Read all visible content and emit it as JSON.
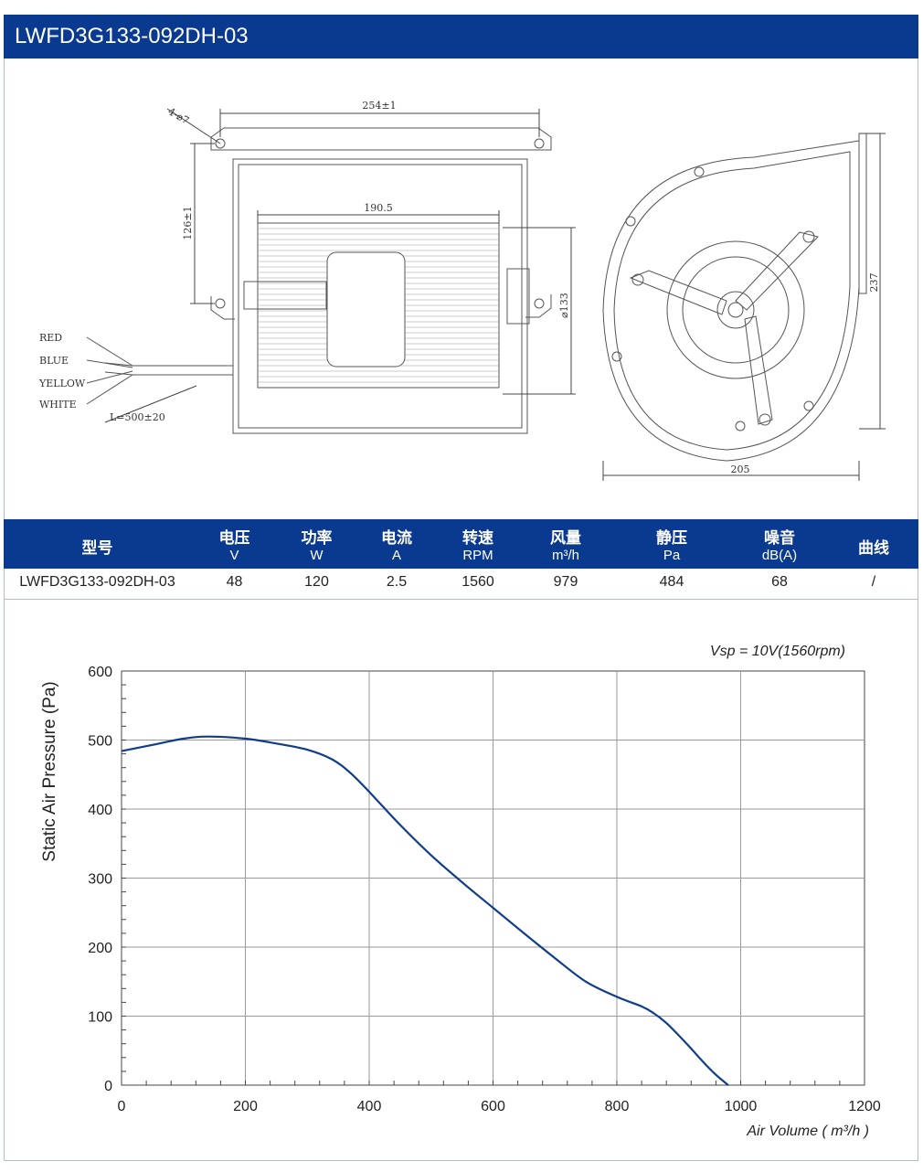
{
  "title": "LWFD3G133-092DH-03",
  "drawing": {
    "dim_width": "254±1",
    "dim_hole": "4-⌀7",
    "dim_height_left": "126±1",
    "dim_inner": "190.5",
    "dim_diameter": "⌀133",
    "dim_height_right": "237",
    "dim_depth": "205",
    "cable_length": "L=500±20",
    "wires": [
      "RED",
      "BLUE",
      "YELLOW",
      "WHITE"
    ]
  },
  "spec_table": {
    "headers": [
      {
        "label": "型号",
        "unit": ""
      },
      {
        "label": "电压",
        "unit": "V"
      },
      {
        "label": "功率",
        "unit": "W"
      },
      {
        "label": "电流",
        "unit": "A"
      },
      {
        "label": "转速",
        "unit": "RPM"
      },
      {
        "label": "风量",
        "unit": "m³/h"
      },
      {
        "label": "静压",
        "unit": "Pa"
      },
      {
        "label": "噪音",
        "unit": "dB(A)"
      },
      {
        "label": "曲线",
        "unit": ""
      }
    ],
    "row": [
      "LWFD3G133-092DH-03",
      "48",
      "120",
      "2.5",
      "1560",
      "979",
      "484",
      "68",
      "/"
    ]
  },
  "chart_data": {
    "type": "line",
    "title": "",
    "annotation": "Vsp = 10V(1560rpm)",
    "xlabel": "Air Volume ( m³/h )",
    "ylabel": "Static Air Pressure  (Pa)",
    "xlim": [
      0,
      1200
    ],
    "ylim": [
      0,
      600
    ],
    "xticks": [
      0,
      200,
      400,
      600,
      800,
      1000,
      1200
    ],
    "yticks": [
      0,
      100,
      200,
      300,
      400,
      500,
      600
    ],
    "grid": true,
    "line_color": "#0f3d8c",
    "series": [
      {
        "x": [
          0,
          50,
          100,
          140,
          200,
          250,
          300,
          340,
          370,
          400,
          450,
          500,
          550,
          600,
          650,
          700,
          750,
          800,
          840,
          860,
          880,
          900,
          920,
          940,
          960,
          980
        ],
        "y": [
          484,
          493,
          502,
          505,
          502,
          495,
          486,
          472,
          452,
          425,
          377,
          333,
          294,
          257,
          220,
          184,
          150,
          128,
          114,
          104,
          90,
          72,
          53,
          33,
          15,
          0
        ]
      }
    ]
  }
}
